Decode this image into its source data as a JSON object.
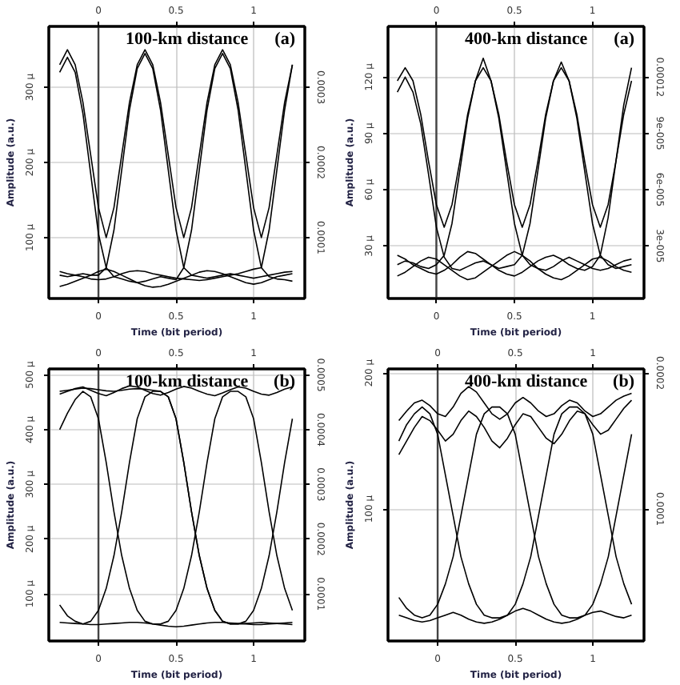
{
  "chart_data": [
    {
      "type": "line",
      "title": "100-km distance",
      "annotations": [
        "(a)"
      ],
      "xlabel": "Time (bit period)",
      "ylabel": "Amplitude (a.u.)",
      "grid": true,
      "x": [
        -0.25,
        -0.2,
        -0.15,
        -0.1,
        -0.05,
        0,
        0.05,
        0.1,
        0.15,
        0.2,
        0.25,
        0.3,
        0.35,
        0.4,
        0.45,
        0.5,
        0.55,
        0.6,
        0.65,
        0.7,
        0.75,
        0.8,
        0.85,
        0.9,
        0.95,
        1,
        1.05,
        1.1,
        1.15,
        1.2,
        1.25
      ],
      "xlim": [
        -0.32,
        1.33
      ],
      "xticks": [
        0,
        0.5,
        1
      ],
      "x2lim": [
        -0.32,
        1.33
      ],
      "x2ticks": [
        0,
        0.5,
        1
      ],
      "ylim": [
        19,
        381
      ],
      "yticks": [
        {
          "value": 100,
          "label": "100 µ"
        },
        {
          "value": 200,
          "label": "200 µ"
        },
        {
          "value": 300,
          "label": "300 µ"
        }
      ],
      "y2lim": [
        1.9e-05,
        0.000381
      ],
      "y2ticks": [
        0.0001,
        0.0002,
        0.0003
      ],
      "ref_lines": [
        {
          "axis": "x",
          "value": 0,
          "color": "#444444"
        }
      ],
      "series": [
        {
          "color": "#000000",
          "values": [
            330,
            350,
            330,
            280,
            210,
            140,
            100,
            140,
            210,
            280,
            330,
            350,
            330,
            280,
            210,
            140,
            100,
            140,
            210,
            280,
            330,
            350,
            330,
            280,
            210,
            140,
            100,
            140,
            210,
            280,
            330
          ]
        },
        {
          "color": "#000000",
          "values": [
            50,
            48,
            50,
            52,
            50,
            50,
            60,
            110,
            190,
            270,
            325,
            345,
            325,
            270,
            190,
            110,
            60,
            50,
            48,
            46,
            48,
            50,
            52,
            50,
            48,
            46,
            48,
            50,
            52,
            54,
            55
          ]
        },
        {
          "color": "#000000",
          "values": [
            320,
            340,
            320,
            265,
            185,
            105,
            60,
            48,
            45,
            42,
            40,
            42,
            45,
            48,
            46,
            44,
            60,
            110,
            190,
            270,
            325,
            345,
            325,
            270,
            190,
            110,
            60,
            48,
            45,
            44,
            42
          ]
        },
        {
          "color": "#000000",
          "values": [
            55,
            52,
            50,
            48,
            45,
            44,
            45,
            48,
            52,
            55,
            56,
            55,
            52,
            50,
            48,
            46,
            45,
            44,
            43,
            44,
            46,
            48,
            50,
            52,
            55,
            58,
            60,
            110,
            190,
            270,
            330
          ]
        },
        {
          "color": "#000000",
          "values": [
            35,
            38,
            42,
            46,
            50,
            55,
            58,
            55,
            50,
            45,
            40,
            36,
            34,
            35,
            38,
            42,
            46,
            50,
            54,
            56,
            55,
            52,
            48,
            44,
            40,
            38,
            40,
            44,
            48,
            50,
            52
          ]
        }
      ]
    },
    {
      "type": "line",
      "title": "400-km distance",
      "annotations": [
        "(a)"
      ],
      "xlabel": "Time (bit period)",
      "ylabel": "Amplitude (a.u.)",
      "grid": true,
      "x": [
        -0.25,
        -0.2,
        -0.15,
        -0.1,
        -0.05,
        0,
        0.05,
        0.1,
        0.15,
        0.2,
        0.25,
        0.3,
        0.35,
        0.4,
        0.45,
        0.5,
        0.55,
        0.6,
        0.65,
        0.7,
        0.75,
        0.8,
        0.85,
        0.9,
        0.95,
        1,
        1.05,
        1.1,
        1.15,
        1.2,
        1.25
      ],
      "xlim": [
        -0.31,
        1.33
      ],
      "xticks": [
        0,
        0.5,
        1
      ],
      "x2lim": [
        -0.31,
        1.33
      ],
      "x2ticks": [
        0,
        0.5,
        1
      ],
      "ylim": [
        2,
        147
      ],
      "yticks": [
        {
          "value": 30,
          "label": "30 µ"
        },
        {
          "value": 60,
          "label": "60 µ"
        },
        {
          "value": 90,
          "label": "90 µ"
        },
        {
          "value": 120,
          "label": "120 µ"
        }
      ],
      "y2lim": [
        2e-06,
        0.000147
      ],
      "y2ticks": [
        {
          "value": 3e-05,
          "label": "3e-005"
        },
        {
          "value": 6e-05,
          "label": "6e-005"
        },
        {
          "value": 9e-05,
          "label": "9e-005"
        },
        0.00012
      ],
      "ref_lines": [
        {
          "axis": "x",
          "value": 0,
          "color": "#444444"
        }
      ],
      "series": [
        {
          "color": "#000000",
          "values": [
            118,
            125,
            118,
            100,
            75,
            52,
            40,
            52,
            75,
            100,
            118,
            125,
            118,
            100,
            75,
            52,
            40,
            52,
            75,
            100,
            118,
            125,
            118,
            100,
            75,
            52,
            40,
            52,
            75,
            100,
            118
          ]
        },
        {
          "color": "#000000",
          "values": [
            20,
            22,
            21,
            19,
            18,
            20,
            25,
            42,
            70,
            98,
            118,
            130,
            118,
            98,
            70,
            42,
            25,
            20,
            18,
            17,
            19,
            22,
            24,
            22,
            20,
            18,
            17,
            18,
            20,
            22,
            23
          ]
        },
        {
          "color": "#000000",
          "values": [
            112,
            120,
            112,
            95,
            68,
            40,
            24,
            18,
            17,
            19,
            21,
            22,
            20,
            18,
            19,
            20,
            25,
            42,
            70,
            98,
            118,
            128,
            118,
            98,
            70,
            42,
            25,
            20,
            18,
            19,
            20
          ]
        },
        {
          "color": "#000000",
          "values": [
            25,
            23,
            20,
            18,
            16,
            15,
            17,
            20,
            24,
            27,
            26,
            23,
            20,
            17,
            15,
            14,
            16,
            19,
            22,
            24,
            25,
            23,
            20,
            18,
            17,
            19,
            25,
            45,
            75,
            105,
            125
          ]
        },
        {
          "color": "#000000",
          "values": [
            14,
            16,
            19,
            22,
            24,
            23,
            20,
            17,
            14,
            12,
            13,
            16,
            19,
            22,
            25,
            27,
            25,
            22,
            18,
            15,
            13,
            12,
            14,
            17,
            20,
            23,
            24,
            22,
            19,
            17,
            16
          ]
        }
      ]
    },
    {
      "type": "line",
      "title": "100-km distance",
      "annotations": [
        "(b)"
      ],
      "xlabel": "Time (bit period)",
      "ylabel": "Amplitude (a.u.)",
      "grid": true,
      "x": [
        -0.25,
        -0.2,
        -0.15,
        -0.1,
        -0.05,
        0,
        0.05,
        0.1,
        0.15,
        0.2,
        0.25,
        0.3,
        0.35,
        0.4,
        0.45,
        0.5,
        0.55,
        0.6,
        0.65,
        0.7,
        0.75,
        0.8,
        0.85,
        0.9,
        0.95,
        1,
        1.05,
        1.1,
        1.15,
        1.2,
        1.25
      ],
      "xlim": [
        -0.32,
        1.33
      ],
      "xticks": [
        0,
        0.5,
        1
      ],
      "x2lim": [
        -0.32,
        1.33
      ],
      "x2ticks": [
        0,
        0.5,
        1
      ],
      "ylim": [
        14,
        511
      ],
      "yticks": [
        {
          "value": 100,
          "label": "100 µ"
        },
        {
          "value": 200,
          "label": "200 µ"
        },
        {
          "value": 300,
          "label": "300 µ"
        },
        {
          "value": 400,
          "label": "400 µ"
        },
        {
          "value": 500,
          "label": "500 µ"
        }
      ],
      "y2lim": [
        1.4e-05,
        0.000511
      ],
      "y2ticks": [
        0.0001,
        0.0002,
        0.0003,
        0.0004,
        0.0005
      ],
      "ref_lines": [
        {
          "axis": "x",
          "value": 0,
          "color": "#444444"
        }
      ],
      "series": [
        {
          "color": "#000000",
          "values": [
            400,
            430,
            455,
            470,
            460,
            420,
            340,
            250,
            170,
            110,
            70,
            50,
            45,
            45,
            50,
            70,
            110,
            170,
            250,
            340,
            420,
            460,
            470,
            470,
            460,
            420,
            340,
            250,
            170,
            110,
            70
          ]
        },
        {
          "color": "#000000",
          "values": [
            80,
            60,
            50,
            45,
            50,
            70,
            110,
            170,
            250,
            340,
            420,
            460,
            470,
            470,
            460,
            420,
            340,
            250,
            170,
            110,
            70,
            50,
            45,
            45,
            50,
            70,
            110,
            170,
            250,
            340,
            420
          ]
        },
        {
          "color": "#000000",
          "values": [
            465,
            470,
            475,
            478,
            472,
            466,
            462,
            468,
            475,
            480,
            478,
            472,
            466,
            463,
            468,
            474,
            479,
            476,
            470,
            465,
            462,
            467,
            473,
            478,
            476,
            470,
            465,
            463,
            468,
            474,
            478
          ]
        },
        {
          "color": "#000000",
          "values": [
            48,
            47,
            46,
            45,
            44,
            44,
            45,
            46,
            47,
            48,
            48,
            47,
            45,
            43,
            41,
            40,
            41,
            43,
            45,
            47,
            48,
            48,
            47,
            46,
            45,
            44,
            44,
            45,
            46,
            47,
            48
          ]
        },
        {
          "color": "#000000",
          "values": [
            470,
            472,
            474,
            476,
            475,
            473,
            471,
            470,
            472,
            474,
            475,
            474,
            472,
            470,
            460,
            420,
            340,
            250,
            170,
            110,
            70,
            50,
            45,
            45,
            46,
            47,
            48,
            47,
            46,
            45,
            44
          ]
        }
      ]
    },
    {
      "type": "line",
      "title": "400-km distance",
      "annotations": [
        "(b)"
      ],
      "xlabel": "Time (bit period)",
      "ylabel": "Amplitude (a.u.)",
      "grid": true,
      "x": [
        -0.25,
        -0.2,
        -0.15,
        -0.1,
        -0.05,
        0,
        0.05,
        0.1,
        0.15,
        0.2,
        0.25,
        0.3,
        0.35,
        0.4,
        0.45,
        0.5,
        0.55,
        0.6,
        0.65,
        0.7,
        0.75,
        0.8,
        0.85,
        0.9,
        0.95,
        1,
        1.05,
        1.1,
        1.15,
        1.2,
        1.25
      ],
      "xlim": [
        -0.32,
        1.33
      ],
      "xticks": [
        0,
        0.5,
        1
      ],
      "x2lim": [
        -0.32,
        1.33
      ],
      "x2ticks": [
        0,
        0.5,
        1
      ],
      "ylim": [
        3,
        203
      ],
      "yticks": [
        {
          "value": 100,
          "label": "100 µ"
        },
        {
          "value": 200,
          "label": "200 µ"
        }
      ],
      "y2lim": [
        3e-06,
        0.000203
      ],
      "y2ticks": [
        0.0001,
        0.0002
      ],
      "ref_lines": [
        {
          "axis": "x",
          "value": 0,
          "color": "#444444"
        }
      ],
      "series": [
        {
          "color": "#000000",
          "values": [
            150,
            162,
            170,
            175,
            170,
            155,
            125,
            95,
            65,
            45,
            30,
            22,
            20,
            20,
            22,
            30,
            45,
            65,
            95,
            125,
            155,
            170,
            175,
            175,
            170,
            155,
            125,
            95,
            65,
            45,
            30
          ]
        },
        {
          "color": "#000000",
          "values": [
            35,
            27,
            22,
            20,
            22,
            30,
            45,
            65,
            95,
            125,
            155,
            170,
            175,
            175,
            170,
            155,
            125,
            95,
            65,
            45,
            30,
            22,
            20,
            20,
            22,
            30,
            45,
            65,
            95,
            125,
            155
          ]
        },
        {
          "color": "#000000",
          "values": [
            165,
            172,
            178,
            180,
            176,
            170,
            168,
            175,
            185,
            190,
            186,
            178,
            170,
            166,
            170,
            178,
            182,
            178,
            172,
            168,
            170,
            176,
            180,
            178,
            172,
            168,
            170,
            175,
            180,
            183,
            185
          ]
        },
        {
          "color": "#000000",
          "values": [
            22,
            20,
            18,
            17,
            18,
            20,
            22,
            24,
            22,
            19,
            17,
            16,
            17,
            19,
            22,
            25,
            27,
            25,
            22,
            19,
            17,
            16,
            17,
            19,
            22,
            24,
            25,
            23,
            21,
            20,
            22
          ]
        },
        {
          "color": "#000000",
          "values": [
            140,
            150,
            160,
            168,
            165,
            158,
            150,
            155,
            165,
            172,
            168,
            160,
            150,
            145,
            152,
            162,
            170,
            168,
            160,
            152,
            148,
            155,
            165,
            172,
            170,
            162,
            155,
            158,
            166,
            174,
            180
          ]
        }
      ]
    }
  ]
}
